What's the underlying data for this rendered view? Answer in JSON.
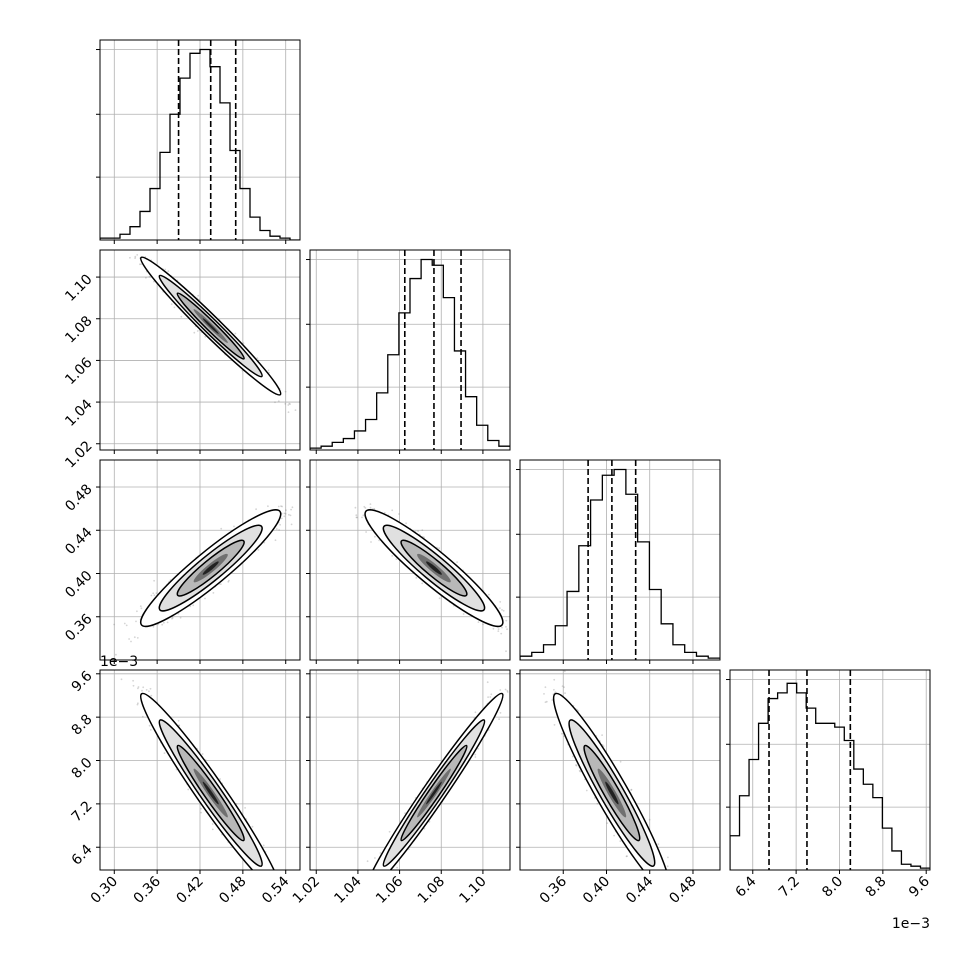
{
  "chart_data": {
    "type": "corner",
    "parameters": [
      {
        "range": [
          0.28,
          0.56
        ],
        "ticks": [
          0.3,
          0.36,
          0.42,
          0.48,
          0.54
        ],
        "tick_labels": [
          "0.30",
          "0.36",
          "0.42",
          "0.48",
          "0.54"
        ],
        "offset_label": ""
      },
      {
        "range": [
          1.017,
          1.113
        ],
        "ticks": [
          1.02,
          1.04,
          1.06,
          1.08,
          1.1
        ],
        "tick_labels": [
          "1.02",
          "1.04",
          "1.06",
          "1.08",
          "1.10"
        ],
        "offset_label": ""
      },
      {
        "range": [
          0.32,
          0.505
        ],
        "ticks": [
          0.36,
          0.4,
          0.44,
          0.48
        ],
        "tick_labels": [
          "0.36",
          "0.40",
          "0.44",
          "0.48"
        ],
        "offset_label": ""
      },
      {
        "range": [
          5.98,
          9.67
        ],
        "ticks": [
          6.4,
          7.2,
          8.0,
          8.8,
          9.6
        ],
        "tick_labels": [
          "6.4",
          "7.2",
          "8.0",
          "8.8",
          "9.6"
        ],
        "offset_label": "1e−3"
      }
    ],
    "quantiles": [
      [
        0.39,
        0.435,
        0.47
      ],
      [
        1.0625,
        1.0765,
        1.0895
      ],
      [
        0.383,
        0.405,
        0.427
      ],
      [
        6.7,
        7.4,
        8.2
      ]
    ],
    "histograms": [
      [
        0.01,
        0.01,
        0.03,
        0.07,
        0.15,
        0.27,
        0.46,
        0.66,
        0.85,
        0.98,
        1.0,
        0.91,
        0.72,
        0.47,
        0.27,
        0.12,
        0.05,
        0.02,
        0.01,
        0.0
      ],
      [
        0.01,
        0.02,
        0.04,
        0.06,
        0.1,
        0.16,
        0.3,
        0.5,
        0.72,
        0.9,
        1.0,
        0.97,
        0.8,
        0.52,
        0.28,
        0.13,
        0.05,
        0.02
      ],
      [
        0.02,
        0.04,
        0.08,
        0.18,
        0.36,
        0.6,
        0.84,
        0.97,
        1.0,
        0.87,
        0.62,
        0.37,
        0.19,
        0.08,
        0.04,
        0.02,
        0.01
      ],
      [
        0.18,
        0.39,
        0.58,
        0.77,
        0.9,
        0.93,
        0.98,
        0.93,
        0.85,
        0.77,
        0.77,
        0.75,
        0.68,
        0.53,
        0.45,
        0.38,
        0.22,
        0.1,
        0.03,
        0.02,
        0.01
      ]
    ],
    "correlations": {
      "1-0": -0.98,
      "2-0": 0.93,
      "2-1": -0.93,
      "3-0": -0.97,
      "3-1": 0.98,
      "3-2": -0.95
    },
    "grid": true
  }
}
